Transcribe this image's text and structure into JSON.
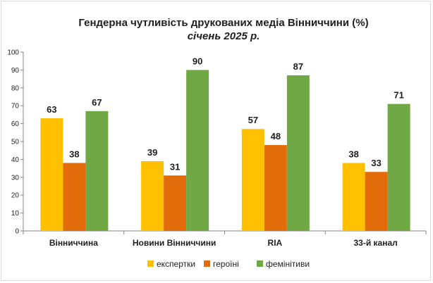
{
  "chart_data": {
    "type": "bar",
    "title": "Гендерна чутливість друкованих медіа Вінниччини (%)",
    "subtitle": "січень 2025 р.",
    "xlabel": "",
    "ylabel": "",
    "ylim": [
      0,
      100
    ],
    "ytick_step": 10,
    "grid": false,
    "legend_position": "bottom",
    "categories": [
      "Вінниччина",
      "Новини Вінниччини",
      "RIA",
      "33-й канал"
    ],
    "series": [
      {
        "name": "експертки",
        "color": "#ffc000",
        "values": [
          63,
          39,
          57,
          38
        ]
      },
      {
        "name": "героїні",
        "color": "#e36c0a",
        "values": [
          38,
          31,
          48,
          33
        ]
      },
      {
        "name": "фемінітиви",
        "color": "#70a845",
        "values": [
          67,
          90,
          87,
          71
        ]
      }
    ]
  }
}
